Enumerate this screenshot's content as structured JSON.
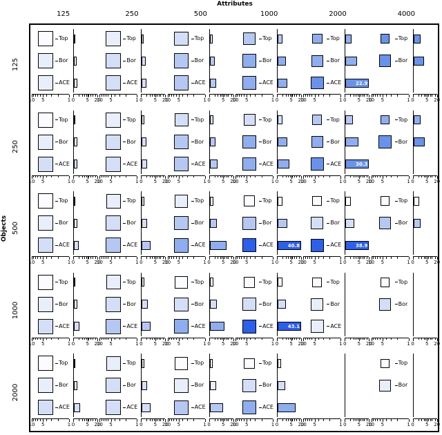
{
  "chart_data": {
    "type": "trellis-square-bar",
    "title": "Attributes",
    "row_dimension": "Objects",
    "col_labels": [
      "125",
      "250",
      "500",
      "1000",
      "2000",
      "4000"
    ],
    "row_labels": [
      "125",
      "250",
      "500",
      "1000",
      "2000"
    ],
    "methods": [
      "Top",
      "Bor",
      "ACE"
    ],
    "left_axis_ticks": [
      "10",
      "5",
      "1"
    ],
    "right_axis_ticks": [
      "0",
      "5",
      "20"
    ],
    "bar_axis_max": 20,
    "palette": [
      "#fbfcff",
      "#e9eefb",
      "#d4dff7",
      "#b6c8f2",
      "#90aeee",
      "#6a92e9",
      "#2e5fe8"
    ],
    "labeled_values": [
      {
        "objects": "125",
        "attributes": "2000",
        "method": "ACE",
        "value": 22.9
      },
      {
        "objects": "250",
        "attributes": "2000",
        "method": "ACE",
        "value": 30.3
      },
      {
        "objects": "500",
        "attributes": "1000",
        "method": "ACE",
        "value": 40.8
      },
      {
        "objects": "500",
        "attributes": "2000",
        "method": "ACE",
        "value": 38.9
      },
      {
        "objects": "1000",
        "attributes": "1000",
        "method": "ACE",
        "value": 43.1
      }
    ],
    "panels": [
      {
        "r": 0,
        "c": 0,
        "cells": [
          {
            "m": "Top",
            "size": 0.85,
            "shade": 0,
            "bar": 0.2
          },
          {
            "m": "Bor",
            "size": 0.85,
            "shade": 1,
            "bar": 0.4
          },
          {
            "m": "ACE",
            "size": 0.85,
            "shade": 1,
            "bar": 0.5
          }
        ]
      },
      {
        "r": 0,
        "c": 1,
        "cells": [
          {
            "m": "Top",
            "size": 0.85,
            "shade": 1,
            "bar": 0.3
          },
          {
            "m": "Bor",
            "size": 0.85,
            "shade": 2,
            "bar": 0.6
          },
          {
            "m": "ACE",
            "size": 0.85,
            "shade": 2,
            "bar": 0.8
          }
        ]
      },
      {
        "r": 0,
        "c": 2,
        "cells": [
          {
            "m": "Top",
            "size": 0.75,
            "shade": 2,
            "bar": 0.5
          },
          {
            "m": "Bor",
            "size": 0.8,
            "shade": 3,
            "bar": 1.0
          },
          {
            "m": "ACE",
            "size": 0.8,
            "shade": 3,
            "bar": 1.3
          }
        ]
      },
      {
        "r": 0,
        "c": 3,
        "cells": [
          {
            "m": "Top",
            "size": 0.55,
            "shade": 3,
            "bar": 0.8
          },
          {
            "m": "Bor",
            "size": 0.65,
            "shade": 4,
            "bar": 2.0
          },
          {
            "m": "ACE",
            "size": 0.7,
            "shade": 4,
            "bar": 2.6
          }
        ]
      },
      {
        "r": 0,
        "c": 4,
        "cells": [
          {
            "m": "Top",
            "size": 0.35,
            "shade": 4,
            "bar": 1.2
          },
          {
            "m": "Bor",
            "size": 0.5,
            "shade": 4,
            "bar": 3.5
          },
          {
            "m": "ACE",
            "size": 0.6,
            "shade": 5,
            "bar": 22.9,
            "lbl": "22.9"
          }
        ]
      },
      {
        "r": 0,
        "c": 5,
        "cells": [
          {
            "m": "Top",
            "size": 0.25,
            "shade": 5,
            "bar": 1.5
          },
          {
            "m": "Bor",
            "size": 0.55,
            "shade": 5,
            "bar": 3.0
          }
        ]
      },
      {
        "r": 1,
        "c": 0,
        "cells": [
          {
            "m": "Top",
            "size": 0.85,
            "shade": 0,
            "bar": 0.2
          },
          {
            "m": "Bor",
            "size": 0.85,
            "shade": 1,
            "bar": 0.5
          },
          {
            "m": "ACE",
            "size": 0.85,
            "shade": 2,
            "bar": 0.6
          }
        ]
      },
      {
        "r": 1,
        "c": 1,
        "cells": [
          {
            "m": "Top",
            "size": 0.85,
            "shade": 1,
            "bar": 0.4
          },
          {
            "m": "Bor",
            "size": 0.85,
            "shade": 2,
            "bar": 0.8
          },
          {
            "m": "ACE",
            "size": 0.85,
            "shade": 2,
            "bar": 1.0
          }
        ]
      },
      {
        "r": 1,
        "c": 2,
        "cells": [
          {
            "m": "Top",
            "size": 0.7,
            "shade": 2,
            "bar": 0.6
          },
          {
            "m": "Bor",
            "size": 0.8,
            "shade": 3,
            "bar": 1.2
          },
          {
            "m": "ACE",
            "size": 0.8,
            "shade": 3,
            "bar": 1.8
          }
        ]
      },
      {
        "r": 1,
        "c": 3,
        "cells": [
          {
            "m": "Top",
            "size": 0.5,
            "shade": 2,
            "bar": 0.8
          },
          {
            "m": "Bor",
            "size": 0.65,
            "shade": 4,
            "bar": 2.5
          },
          {
            "m": "ACE",
            "size": 0.7,
            "shade": 4,
            "bar": 3.6
          }
        ]
      },
      {
        "r": 1,
        "c": 4,
        "cells": [
          {
            "m": "Top",
            "size": 0.3,
            "shade": 3,
            "bar": 1.5
          },
          {
            "m": "Bor",
            "size": 0.5,
            "shade": 4,
            "bar": 4.5
          },
          {
            "m": "ACE",
            "size": 0.65,
            "shade": 5,
            "bar": 30.3,
            "lbl": "30.3"
          }
        ]
      },
      {
        "r": 1,
        "c": 5,
        "cells": [
          {
            "m": "Top",
            "size": 0.25,
            "shade": 4,
            "bar": 1.5
          },
          {
            "m": "Bor",
            "size": 0.6,
            "shade": 5,
            "bar": 3.5
          }
        ]
      },
      {
        "r": 2,
        "c": 0,
        "cells": [
          {
            "m": "Top",
            "size": 0.85,
            "shade": 0,
            "bar": 0.2
          },
          {
            "m": "Bor",
            "size": 0.85,
            "shade": 1,
            "bar": 0.5
          },
          {
            "m": "ACE",
            "size": 0.85,
            "shade": 2,
            "bar": 0.8
          }
        ]
      },
      {
        "r": 2,
        "c": 1,
        "cells": [
          {
            "m": "Top",
            "size": 0.8,
            "shade": 1,
            "bar": 0.4
          },
          {
            "m": "Bor",
            "size": 0.85,
            "shade": 2,
            "bar": 1.0
          },
          {
            "m": "ACE",
            "size": 0.85,
            "shade": 3,
            "bar": 2.2
          }
        ]
      },
      {
        "r": 2,
        "c": 2,
        "cells": [
          {
            "m": "Top",
            "size": 0.65,
            "shade": 1,
            "bar": 0.6
          },
          {
            "m": "Bor",
            "size": 0.75,
            "shade": 3,
            "bar": 1.6
          },
          {
            "m": "ACE",
            "size": 0.8,
            "shade": 4,
            "bar": 7.5
          }
        ]
      },
      {
        "r": 2,
        "c": 3,
        "cells": [
          {
            "m": "Top",
            "size": 0.4,
            "shade": 0,
            "bar": 0.8
          },
          {
            "m": "Bor",
            "size": 0.65,
            "shade": 3,
            "bar": 2.5
          },
          {
            "m": "ACE",
            "size": 0.7,
            "shade": 6,
            "bar": 40.8,
            "lbl": "40.8"
          }
        ]
      },
      {
        "r": 2,
        "c": 4,
        "cells": [
          {
            "m": "Top",
            "size": 0.3,
            "shade": 0,
            "bar": 1.0
          },
          {
            "m": "Bor",
            "size": 0.55,
            "shade": 2,
            "bar": 2.2
          },
          {
            "m": "ACE",
            "size": 0.65,
            "shade": 6,
            "bar": 38.9,
            "lbl": "38.9"
          }
        ]
      },
      {
        "r": 2,
        "c": 5,
        "cells": [
          {
            "m": "Top",
            "size": 0.25,
            "shade": 0,
            "bar": 1.2
          },
          {
            "m": "Bor",
            "size": 0.55,
            "shade": 3,
            "bar": 1.6
          }
        ]
      },
      {
        "r": 3,
        "c": 0,
        "cells": [
          {
            "m": "Top",
            "size": 0.85,
            "shade": 0,
            "bar": 0.2
          },
          {
            "m": "Bor",
            "size": 0.85,
            "shade": 1,
            "bar": 0.6
          },
          {
            "m": "ACE",
            "size": 0.85,
            "shade": 2,
            "bar": 1.0
          }
        ]
      },
      {
        "r": 3,
        "c": 1,
        "cells": [
          {
            "m": "Top",
            "size": 0.8,
            "shade": 1,
            "bar": 0.4
          },
          {
            "m": "Bor",
            "size": 0.85,
            "shade": 2,
            "bar": 1.2
          },
          {
            "m": "ACE",
            "size": 0.85,
            "shade": 3,
            "bar": 2.2
          }
        ]
      },
      {
        "r": 3,
        "c": 2,
        "cells": [
          {
            "m": "Top",
            "size": 0.6,
            "shade": 0,
            "bar": 0.6
          },
          {
            "m": "Bor",
            "size": 0.75,
            "shade": 2,
            "bar": 1.6
          },
          {
            "m": "ACE",
            "size": 0.8,
            "shade": 4,
            "bar": 6.0
          }
        ]
      },
      {
        "r": 3,
        "c": 3,
        "cells": [
          {
            "m": "Top",
            "size": 0.4,
            "shade": 0,
            "bar": 0.8
          },
          {
            "m": "Bor",
            "size": 0.65,
            "shade": 2,
            "bar": 2.0
          },
          {
            "m": "ACE",
            "size": 0.7,
            "shade": 6,
            "bar": 43.1,
            "lbl": "43.1"
          }
        ]
      },
      {
        "r": 3,
        "c": 4,
        "cells": [
          {
            "m": "Top",
            "size": 0.3,
            "shade": 0,
            "bar": 0
          },
          {
            "m": "Bor",
            "size": 0.55,
            "shade": 1,
            "bar": 0
          },
          {
            "m": "ACE",
            "size": 0.65,
            "shade": 1,
            "bar": 0
          }
        ]
      },
      {
        "r": 3,
        "c": 5,
        "cells": [
          {
            "m": "Top",
            "size": 0.25,
            "shade": 0,
            "bar": 0
          },
          {
            "m": "Bor",
            "size": 0.55,
            "shade": 2,
            "bar": 0
          }
        ]
      },
      {
        "r": 4,
        "c": 0,
        "cells": [
          {
            "m": "Top",
            "size": 0.85,
            "shade": 0,
            "bar": 0.2
          },
          {
            "m": "Bor",
            "size": 0.85,
            "shade": 1,
            "bar": 0.6
          },
          {
            "m": "ACE",
            "size": 0.85,
            "shade": 2,
            "bar": 1.3
          }
        ]
      },
      {
        "r": 4,
        "c": 1,
        "cells": [
          {
            "m": "Top",
            "size": 0.8,
            "shade": 1,
            "bar": 0.4
          },
          {
            "m": "Bor",
            "size": 0.85,
            "shade": 2,
            "bar": 1.0
          },
          {
            "m": "ACE",
            "size": 0.85,
            "shade": 2,
            "bar": 2.2
          }
        ]
      },
      {
        "r": 4,
        "c": 2,
        "cells": [
          {
            "m": "Top",
            "size": 0.6,
            "shade": 0,
            "bar": 0.5
          },
          {
            "m": "Bor",
            "size": 0.75,
            "shade": 1,
            "bar": 1.3
          },
          {
            "m": "ACE",
            "size": 0.8,
            "shade": 3,
            "bar": 4.5
          }
        ]
      },
      {
        "r": 4,
        "c": 3,
        "cells": [
          {
            "m": "Top",
            "size": 0.4,
            "shade": 0,
            "bar": 0.6
          },
          {
            "m": "Bor",
            "size": 0.65,
            "shade": 2,
            "bar": 1.6
          },
          {
            "m": "ACE",
            "size": 0.7,
            "shade": 4,
            "bar": 9.0
          }
        ]
      },
      {
        "r": 4,
        "c": 4,
        "cells": []
      },
      {
        "r": 4,
        "c": 5,
        "cells": [
          {
            "m": "Top",
            "size": 0.25,
            "shade": 0,
            "bar": 0
          },
          {
            "m": "Bor",
            "size": 0.55,
            "shade": 1,
            "bar": 0
          }
        ]
      }
    ]
  }
}
